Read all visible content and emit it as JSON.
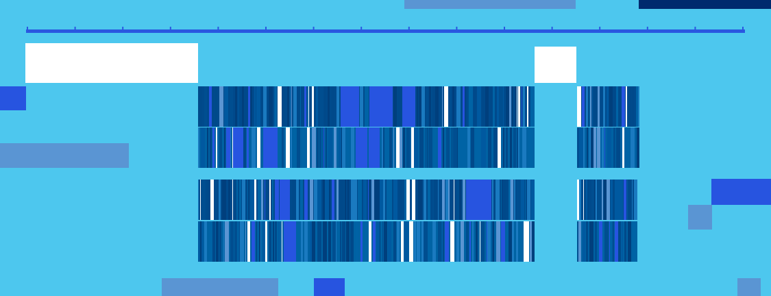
{
  "colors": {
    "background": "#4DC7EE",
    "ruler": "#2A57E0",
    "white": "#FFFFFF",
    "navy": "#002A6E",
    "block_light": "#5A95D3",
    "block_bright": "#2754E0",
    "track_dark": "#00498A",
    "track_medium": "#0063A5",
    "track_light": "#1A7AC0"
  },
  "ruler": {
    "tick_count": 16
  },
  "tracks": [
    {
      "id": "track-1a",
      "segments": 2
    },
    {
      "id": "track-1b",
      "segments": 2
    },
    {
      "id": "track-2a",
      "segments": 2
    },
    {
      "id": "track-2b",
      "segments": 2
    }
  ]
}
